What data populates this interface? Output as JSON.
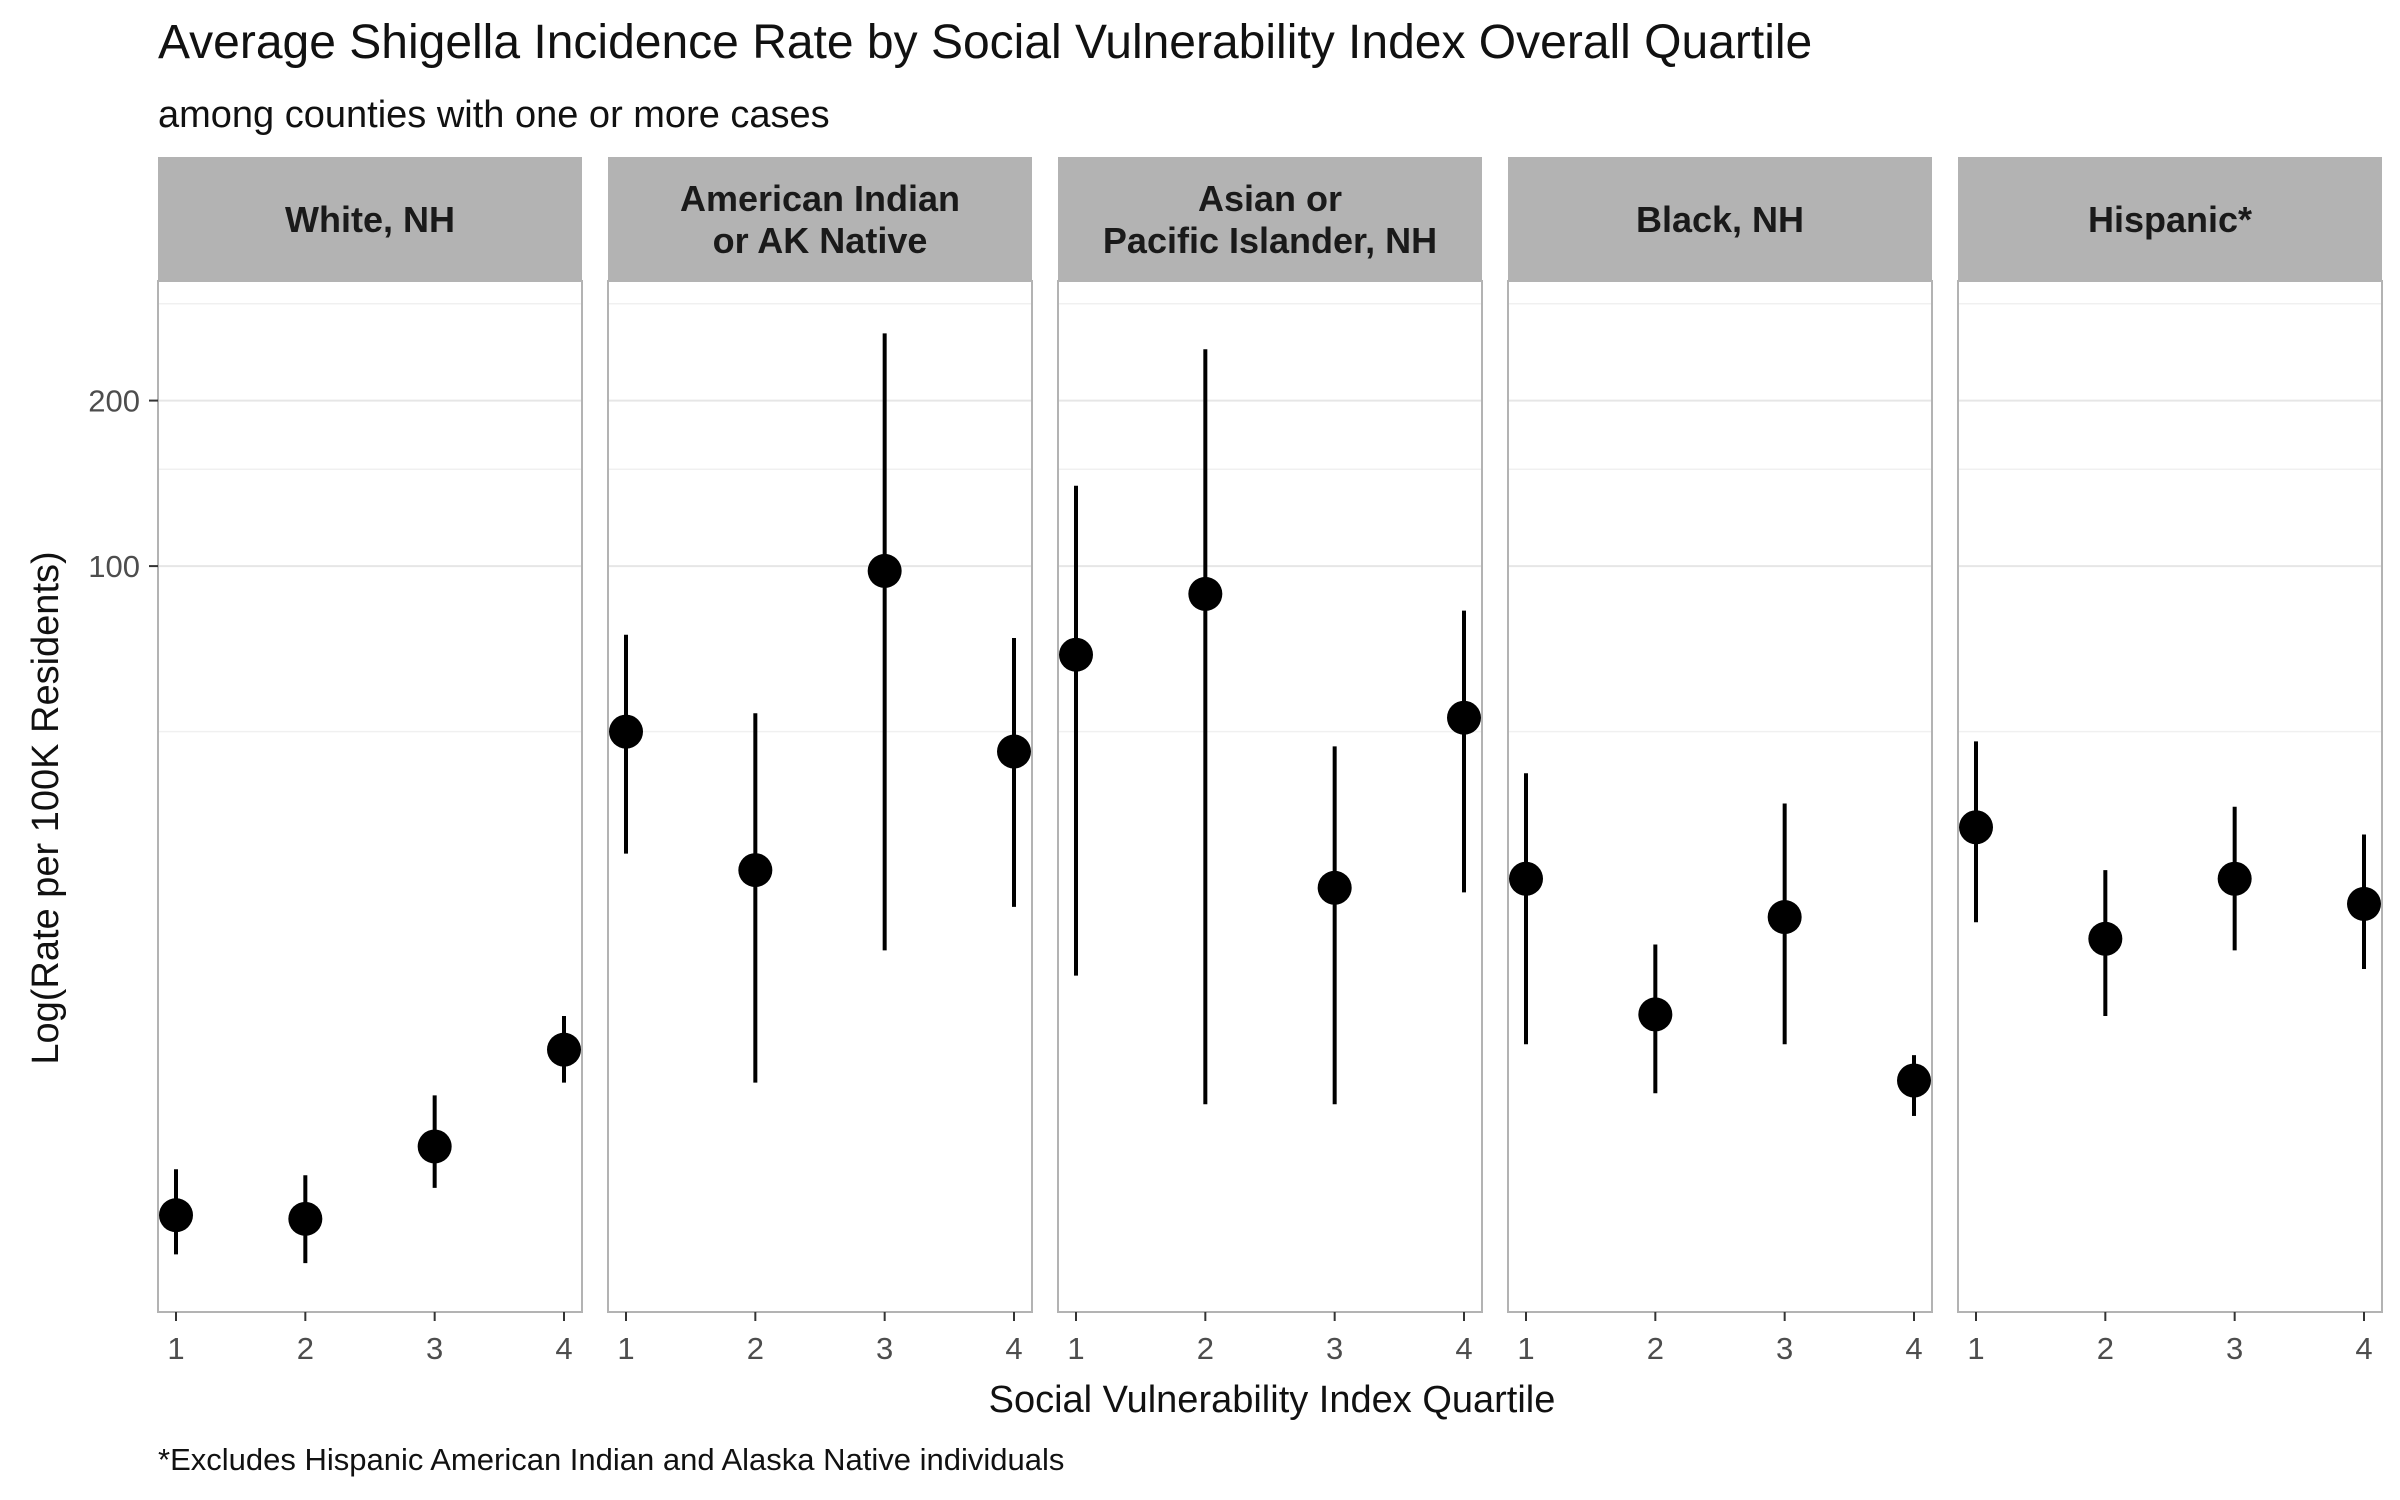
{
  "chart_data": {
    "type": "scatter",
    "title": "Average Shigella Incidence Rate by Social Vulnerability Index Overall Quartile",
    "subtitle": "among counties with one or more cases",
    "xlabel": "Social Vulnerability Index Quartile",
    "ylabel": "Log(Rate per 100K Residents)",
    "caption": "*Excludes Hispanic American Indian and Alaska Native individuals",
    "y_scale": "log",
    "ylim": [
      4.4,
      330
    ],
    "y_ticks": [
      100,
      200
    ],
    "y_tick_labels": [
      "100",
      "200"
    ],
    "y_minor_gridlines": [
      50,
      150,
      300
    ],
    "x_ticks": [
      1,
      2,
      3,
      4
    ],
    "x_tick_labels": [
      "1",
      "2",
      "3",
      "4"
    ],
    "grid": true,
    "colors": {
      "point": "#000000",
      "strip_fill": "#b3b3b3",
      "grid": "#e6e6e6",
      "panel_border": "#b3b3b3"
    },
    "facets": [
      {
        "label_lines": [
          "White, NH"
        ],
        "points": [
          {
            "x": 1,
            "y": 6.6,
            "low": 5.6,
            "high": 8.0
          },
          {
            "x": 2,
            "y": 6.5,
            "low": 5.4,
            "high": 7.8
          },
          {
            "x": 3,
            "y": 8.8,
            "low": 7.4,
            "high": 10.9
          },
          {
            "x": 4,
            "y": 13.2,
            "low": 11.5,
            "high": 15.2
          }
        ]
      },
      {
        "label_lines": [
          "American Indian",
          "or AK Native"
        ],
        "points": [
          {
            "x": 1,
            "y": 50,
            "low": 30,
            "high": 75
          },
          {
            "x": 2,
            "y": 28,
            "low": 11.5,
            "high": 54
          },
          {
            "x": 3,
            "y": 98,
            "low": 20,
            "high": 265
          },
          {
            "x": 4,
            "y": 46,
            "low": 24,
            "high": 74
          }
        ]
      },
      {
        "label_lines": [
          "Asian or",
          "Pacific Islander, NH"
        ],
        "points": [
          {
            "x": 1,
            "y": 69,
            "low": 18,
            "high": 140
          },
          {
            "x": 2,
            "y": 89,
            "low": 10.5,
            "high": 248
          },
          {
            "x": 3,
            "y": 26,
            "low": 10.5,
            "high": 47
          },
          {
            "x": 4,
            "y": 53,
            "low": 25.5,
            "high": 83
          }
        ]
      },
      {
        "label_lines": [
          "Black, NH"
        ],
        "points": [
          {
            "x": 1,
            "y": 27,
            "low": 13.5,
            "high": 42
          },
          {
            "x": 2,
            "y": 15.3,
            "low": 11,
            "high": 20.5
          },
          {
            "x": 3,
            "y": 23,
            "low": 13.5,
            "high": 37
          },
          {
            "x": 4,
            "y": 11.6,
            "low": 10,
            "high": 12.9
          }
        ]
      },
      {
        "label_lines": [
          "Hispanic*"
        ],
        "points": [
          {
            "x": 1,
            "y": 33.5,
            "low": 22.5,
            "high": 48
          },
          {
            "x": 2,
            "y": 21,
            "low": 15.2,
            "high": 28
          },
          {
            "x": 3,
            "y": 27,
            "low": 20,
            "high": 36.5
          },
          {
            "x": 4,
            "y": 24.3,
            "low": 18.5,
            "high": 32.5
          }
        ]
      }
    ]
  }
}
